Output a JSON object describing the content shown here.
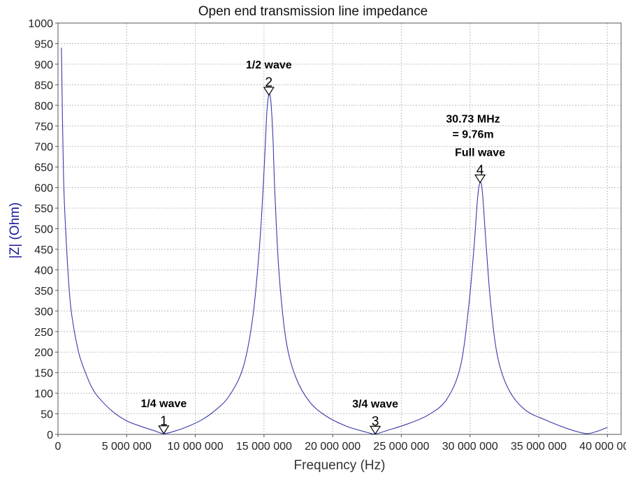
{
  "chart_data": {
    "type": "line",
    "title": "Open end transmission line impedance",
    "xlabel": "Frequency (Hz)",
    "ylabel": "|Z| (Ohm)",
    "xlim": [
      0,
      41000000
    ],
    "ylim": [
      0,
      1000
    ],
    "grid": true,
    "line_color": "#3a3aa8",
    "x_ticks": [
      0,
      5000000,
      10000000,
      15000000,
      20000000,
      25000000,
      30000000,
      35000000,
      40000000
    ],
    "x_tick_labels": [
      "0",
      "5 000 000",
      "10 000 000",
      "15 000 000",
      "20 000 000",
      "25 000 000",
      "30 000 000",
      "35 000 000",
      "40 000 000"
    ],
    "y_ticks": [
      0,
      50,
      100,
      150,
      200,
      250,
      300,
      350,
      400,
      450,
      500,
      550,
      600,
      650,
      700,
      750,
      800,
      850,
      900,
      950,
      1000
    ],
    "y_tick_labels": [
      "0",
      "50",
      "100",
      "150",
      "200",
      "250",
      "300",
      "350",
      "400",
      "450",
      "500",
      "550",
      "600",
      "650",
      "700",
      "750",
      "800",
      "850",
      "900",
      "950",
      "1000"
    ],
    "series": [
      {
        "x": [
          250000,
          400000,
          600000,
          800000,
          1000000,
          1500000,
          2000000,
          2500000,
          3000000,
          4000000,
          5000000,
          6000000,
          7000000,
          7700000,
          8500000,
          9500000,
          10500000,
          11500000,
          12500000,
          13500000,
          14200000,
          14700000,
          15000000,
          15200000,
          15350000,
          15500000,
          15650000,
          15800000,
          16100000,
          16600000,
          17300000,
          18300000,
          19500000,
          21000000,
          22500000,
          23100000,
          24000000,
          25500000,
          27000000,
          28300000,
          29300000,
          29900000,
          30300000,
          30550000,
          30730000,
          30900000,
          31150000,
          31500000,
          32000000,
          32800000,
          34000000,
          35500000,
          37000000,
          38000000,
          38600000,
          39300000,
          40000000
        ],
        "y": [
          940,
          630,
          470,
          360,
          290,
          200,
          150,
          112,
          88,
          55,
          33,
          20,
          9,
          2,
          8,
          20,
          36,
          60,
          95,
          165,
          290,
          470,
          640,
          780,
          825,
          810,
          720,
          580,
          390,
          230,
          140,
          80,
          45,
          20,
          5,
          1,
          10,
          26,
          48,
          85,
          165,
          310,
          460,
          575,
          612,
          590,
          470,
          320,
          190,
          110,
          60,
          35,
          15,
          5,
          2,
          8,
          17
        ]
      }
    ],
    "markers": [
      {
        "number": "1",
        "x": 7700000,
        "y": 2,
        "label": "1/4 wave"
      },
      {
        "number": "2",
        "x": 15350000,
        "y": 825,
        "label": "1/2 wave"
      },
      {
        "number": "3",
        "x": 23100000,
        "y": 1,
        "label": "3/4 wave"
      },
      {
        "number": "4",
        "x": 30730000,
        "y": 612,
        "label": "Full wave",
        "extra": [
          "30.73 MHz",
          "= 9.76m"
        ]
      }
    ]
  }
}
